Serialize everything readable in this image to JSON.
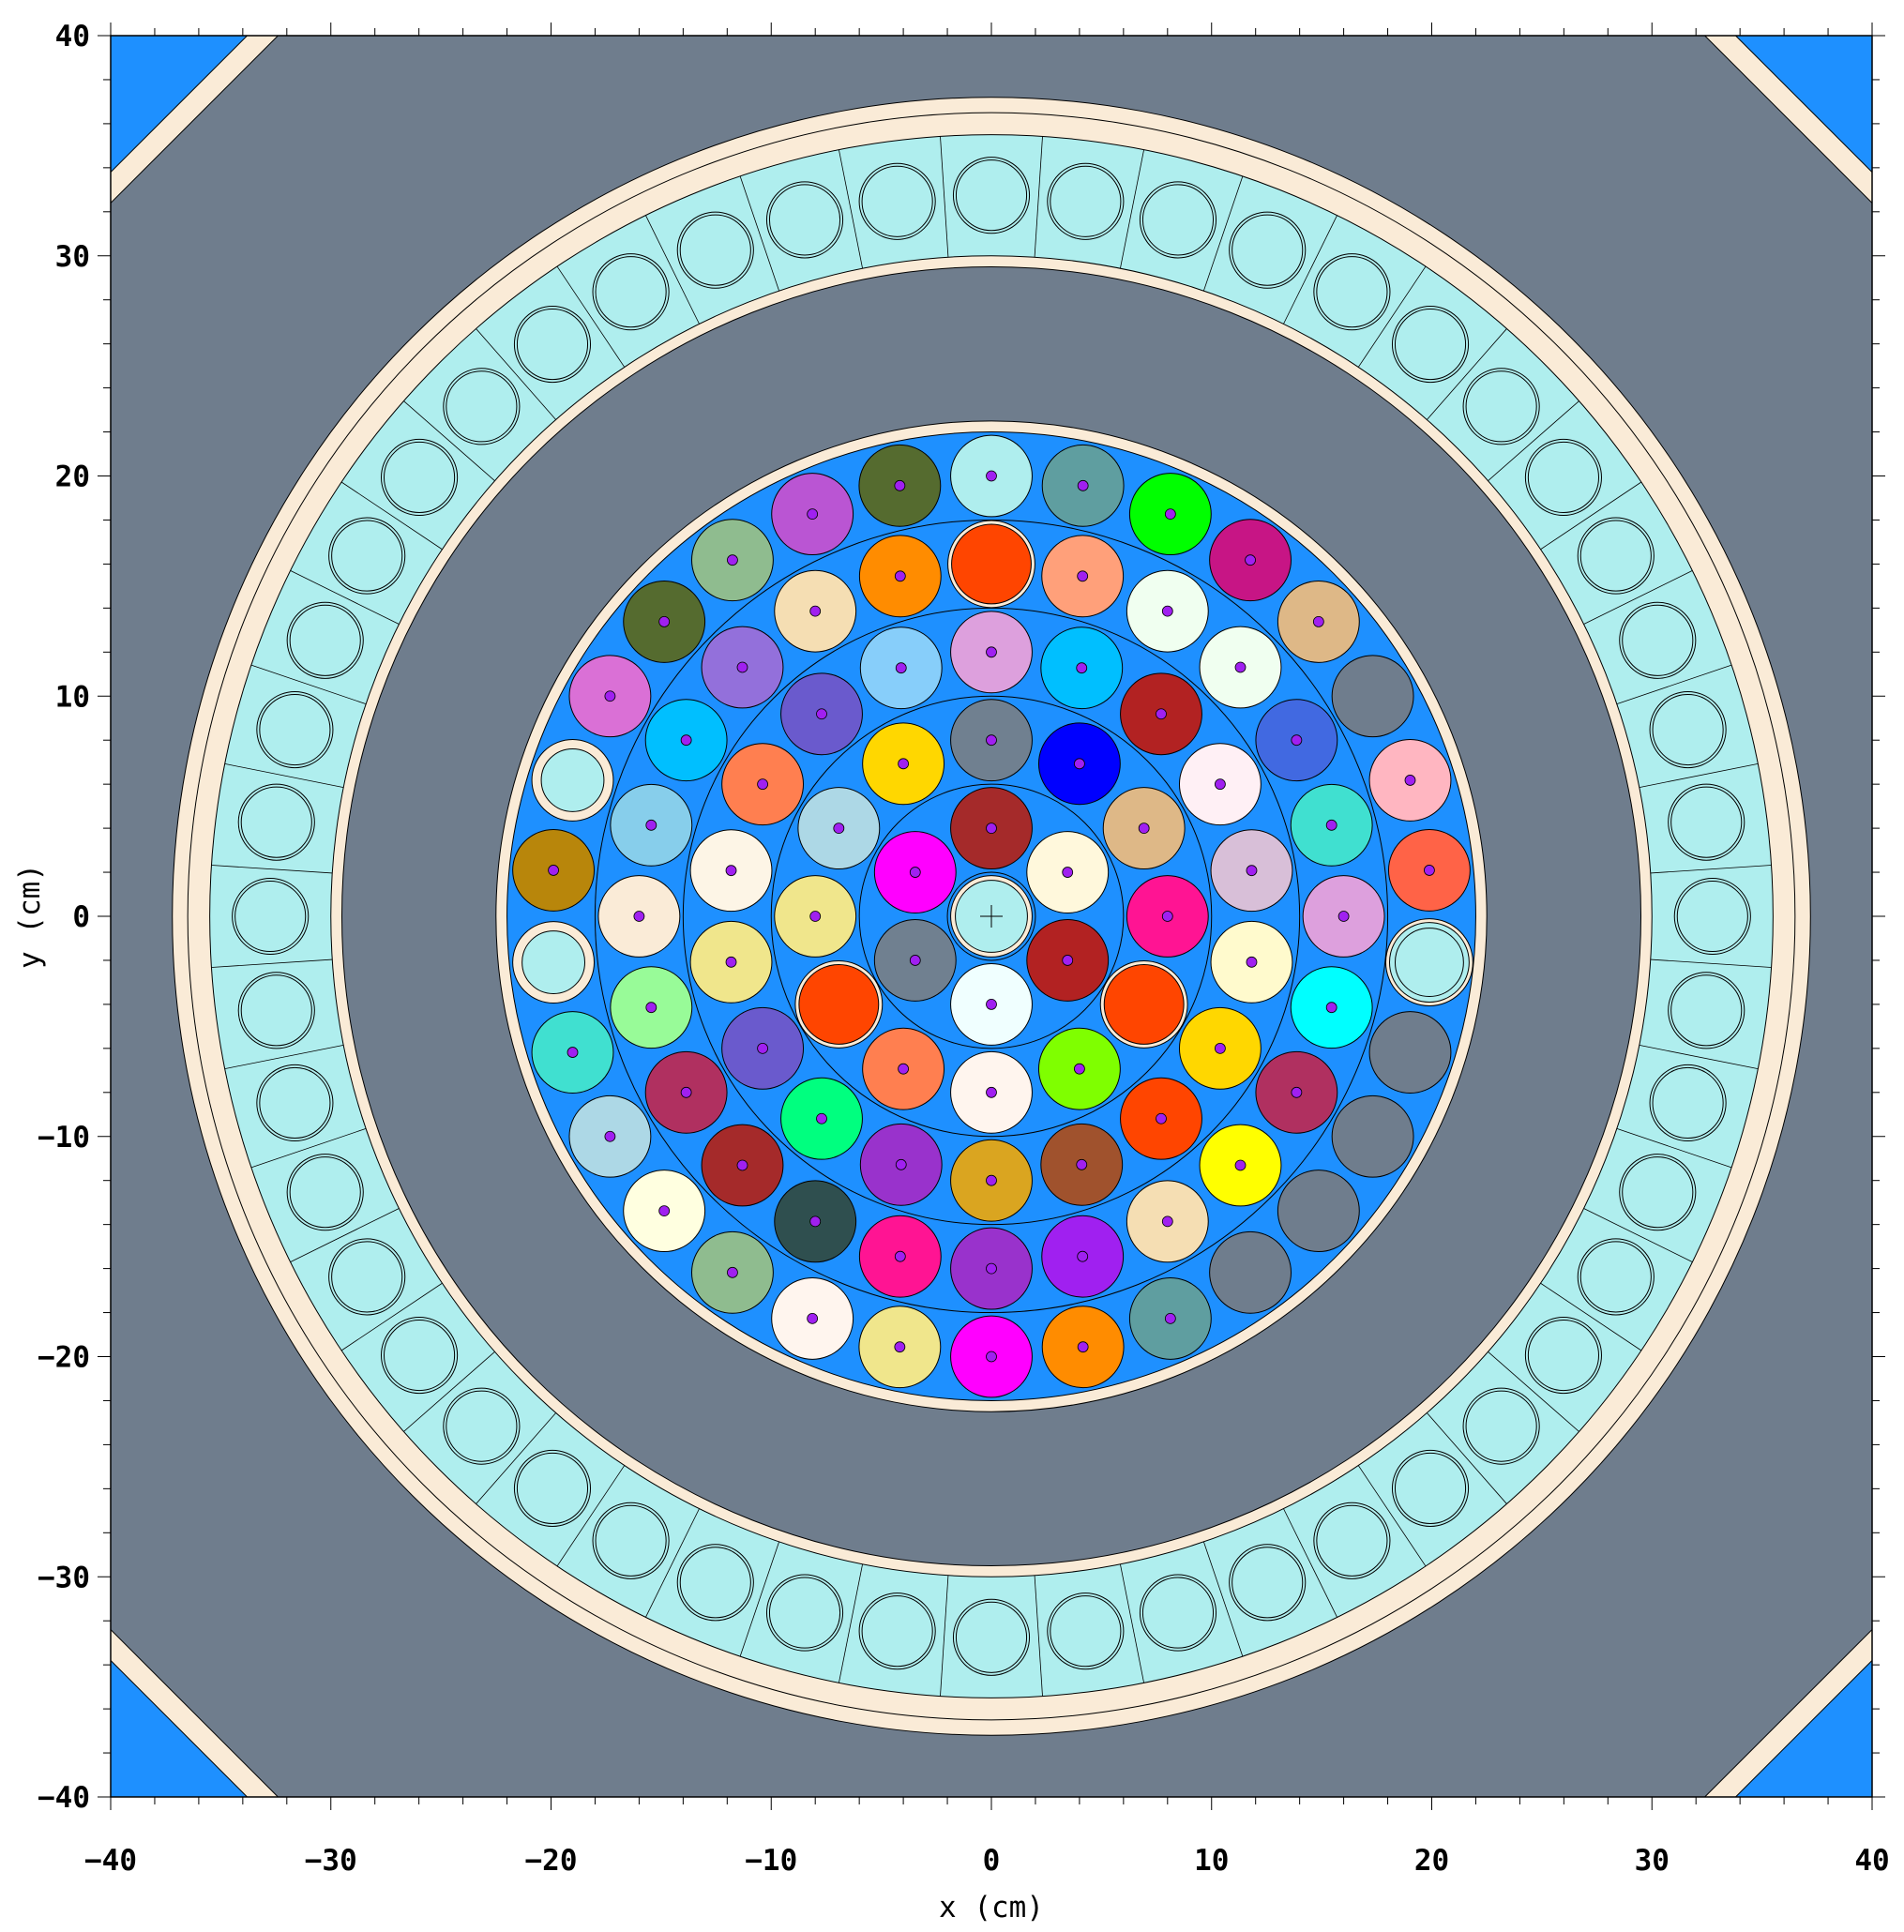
{
  "figure": {
    "x_label": "x (cm)",
    "y_label": "y (cm)",
    "x_range": [
      -40,
      40
    ],
    "y_range": [
      -40,
      40
    ],
    "x_major_ticks": [
      -40,
      -30,
      -20,
      -10,
      0,
      10,
      20,
      30,
      40
    ],
    "y_major_ticks": [
      -40,
      -30,
      -20,
      -10,
      0,
      10,
      20,
      30,
      40
    ],
    "x_tick_labels": [
      "−40",
      "−30",
      "−20",
      "−10",
      "0",
      "10",
      "20",
      "30",
      "40"
    ],
    "y_tick_labels": [
      "−40",
      "−30",
      "−20",
      "−10",
      "0",
      "10",
      "20",
      "30",
      "40"
    ],
    "minor_tick_step": 2
  },
  "colors": {
    "background_gray": "#6f7d8d",
    "corner_water": "#1e90ff",
    "shell_beige": "#faebd7",
    "reflector_cyan": "#afeeee",
    "core_water": "#1e90ff",
    "empty_channel": "#6f7d8d",
    "pin_marker": "#a020f0"
  },
  "geometry_cm": {
    "vessel_outer_radius": 37.2,
    "vessel_inner_radius": 36.5,
    "reflector_outer_radius": 35.5,
    "reflector_inner_radius": 29.5,
    "reflector_inner_shell_radius": 30.0,
    "core_outer_radius": 22.5,
    "core_inner_radius": 22.0,
    "rod_radius": 1.85,
    "reflector_block_count": 48,
    "reflector_hole_radius": 1.6,
    "ring_radii": [
      2.0,
      6.0,
      10.0,
      14.0,
      18.0
    ]
  },
  "channels": [
    {
      "x": 0.0,
      "y": 0.0,
      "type": "central",
      "color": "#afeeee"
    },
    {
      "x": 0.0,
      "y": 4.0,
      "type": "fuel",
      "color": "#a52a2a"
    },
    {
      "x": 3.46,
      "y": 2.0,
      "type": "fuel",
      "color": "#fff8dc"
    },
    {
      "x": 3.46,
      "y": -2.0,
      "type": "fuel",
      "color": "#b22222"
    },
    {
      "x": 0.0,
      "y": -4.0,
      "type": "fuel",
      "color": "#f0ffff"
    },
    {
      "x": -3.46,
      "y": -2.0,
      "type": "fuel",
      "color": "#708090"
    },
    {
      "x": -3.46,
      "y": 2.0,
      "type": "fuel",
      "color": "#ff00ff"
    },
    {
      "x": 0.0,
      "y": 8.0,
      "type": "fuel",
      "color": "#708090"
    },
    {
      "x": 4.0,
      "y": 6.93,
      "type": "fuel",
      "color": "#0000ff"
    },
    {
      "x": 6.93,
      "y": 4.0,
      "type": "fuel",
      "color": "#deb887"
    },
    {
      "x": 8.0,
      "y": 0.0,
      "type": "fuel",
      "color": "#ff1493"
    },
    {
      "x": 6.93,
      "y": -4.0,
      "type": "control",
      "color": "#ff4500"
    },
    {
      "x": 4.0,
      "y": -6.93,
      "type": "fuel",
      "color": "#7fff00"
    },
    {
      "x": 0.0,
      "y": -8.0,
      "type": "fuel",
      "color": "#fff5ee"
    },
    {
      "x": -4.0,
      "y": -6.93,
      "type": "fuel",
      "color": "#ff7f50"
    },
    {
      "x": -6.93,
      "y": -4.0,
      "type": "control",
      "color": "#ff4500"
    },
    {
      "x": -8.0,
      "y": 0.0,
      "type": "fuel",
      "color": "#f0e68c"
    },
    {
      "x": -6.93,
      "y": 4.0,
      "type": "fuel",
      "color": "#add8e6"
    },
    {
      "x": -4.0,
      "y": 6.93,
      "type": "fuel",
      "color": "#ffd700"
    },
    {
      "x": 0.0,
      "y": 12.0,
      "type": "fuel",
      "color": "#dda0dd"
    },
    {
      "x": 4.1,
      "y": 11.28,
      "type": "fuel",
      "color": "#00bfff"
    },
    {
      "x": 7.71,
      "y": 9.19,
      "type": "fuel",
      "color": "#b22222"
    },
    {
      "x": 10.39,
      "y": 6.0,
      "type": "fuel",
      "color": "#fff0f5"
    },
    {
      "x": 11.82,
      "y": 2.08,
      "type": "fuel",
      "color": "#d8bfd8"
    },
    {
      "x": 11.82,
      "y": -2.08,
      "type": "fuel",
      "color": "#fffacd"
    },
    {
      "x": 10.39,
      "y": -6.0,
      "type": "fuel",
      "color": "#ffd700"
    },
    {
      "x": 7.71,
      "y": -9.19,
      "type": "fuel",
      "color": "#ff4500"
    },
    {
      "x": 4.1,
      "y": -11.28,
      "type": "fuel",
      "color": "#a0522d"
    },
    {
      "x": 0.0,
      "y": -12.0,
      "type": "fuel",
      "color": "#daa520"
    },
    {
      "x": -4.1,
      "y": -11.28,
      "type": "fuel",
      "color": "#9932cc"
    },
    {
      "x": -7.71,
      "y": -9.19,
      "type": "fuel",
      "color": "#00ff7f"
    },
    {
      "x": -10.39,
      "y": -6.0,
      "type": "fuel",
      "color": "#6a5acd"
    },
    {
      "x": -11.82,
      "y": -2.08,
      "type": "fuel",
      "color": "#f0e68c"
    },
    {
      "x": -11.82,
      "y": 2.08,
      "type": "fuel",
      "color": "#fdf5e6"
    },
    {
      "x": -10.39,
      "y": 6.0,
      "type": "fuel",
      "color": "#ff7f50"
    },
    {
      "x": -7.71,
      "y": 9.19,
      "type": "fuel",
      "color": "#6a5acd"
    },
    {
      "x": -4.1,
      "y": 11.28,
      "type": "fuel",
      "color": "#87cefa"
    },
    {
      "x": 0.0,
      "y": 16.0,
      "type": "control",
      "color": "#ff4500"
    },
    {
      "x": 4.14,
      "y": 15.45,
      "type": "fuel",
      "color": "#ffa07a"
    },
    {
      "x": 8.0,
      "y": 13.86,
      "type": "fuel",
      "color": "#f0fff0"
    },
    {
      "x": 11.31,
      "y": 11.31,
      "type": "fuel",
      "color": "#f0fff0"
    },
    {
      "x": 13.86,
      "y": 8.0,
      "type": "fuel",
      "color": "#4169e1"
    },
    {
      "x": 15.45,
      "y": 4.14,
      "type": "fuel",
      "color": "#40e0d0"
    },
    {
      "x": 16.0,
      "y": 0.0,
      "type": "fuel",
      "color": "#dda0dd"
    },
    {
      "x": 15.45,
      "y": -4.14,
      "type": "fuel",
      "color": "#00ffff"
    },
    {
      "x": 13.86,
      "y": -8.0,
      "type": "fuel",
      "color": "#b03060"
    },
    {
      "x": 11.31,
      "y": -11.31,
      "type": "fuel",
      "color": "#ffff00"
    },
    {
      "x": 8.0,
      "y": -13.86,
      "type": "fuel",
      "color": "#f5deb3"
    },
    {
      "x": 4.14,
      "y": -15.45,
      "type": "fuel",
      "color": "#a020f0"
    },
    {
      "x": 0.0,
      "y": -16.0,
      "type": "fuel",
      "color": "#9932cc"
    },
    {
      "x": -4.14,
      "y": -15.45,
      "type": "fuel",
      "color": "#ff1493"
    },
    {
      "x": -8.0,
      "y": -13.86,
      "type": "fuel",
      "color": "#2f4f4f"
    },
    {
      "x": -11.31,
      "y": -11.31,
      "type": "fuel",
      "color": "#a52a2a"
    },
    {
      "x": -13.86,
      "y": -8.0,
      "type": "fuel",
      "color": "#b03060"
    },
    {
      "x": -15.45,
      "y": -4.14,
      "type": "fuel",
      "color": "#98fb98"
    },
    {
      "x": -16.0,
      "y": 0.0,
      "type": "fuel",
      "color": "#faebd7"
    },
    {
      "x": -15.45,
      "y": 4.14,
      "type": "fuel",
      "color": "#87ceeb"
    },
    {
      "x": -13.86,
      "y": 8.0,
      "type": "fuel",
      "color": "#00bfff"
    },
    {
      "x": -11.31,
      "y": 11.31,
      "type": "fuel",
      "color": "#9370db"
    },
    {
      "x": -8.0,
      "y": 13.86,
      "type": "fuel",
      "color": "#f5deb3"
    },
    {
      "x": -4.14,
      "y": 15.45,
      "type": "fuel",
      "color": "#ff8c00"
    },
    {
      "x": 0.0,
      "y": 20.0,
      "type": "fuel",
      "color": "#afeeee"
    },
    {
      "x": 4.16,
      "y": 19.56,
      "type": "fuel",
      "color": "#5f9ea0"
    },
    {
      "x": 8.13,
      "y": 18.27,
      "type": "fuel",
      "color": "#00ff00"
    },
    {
      "x": 11.76,
      "y": 16.18,
      "type": "fuel",
      "color": "#c71585"
    },
    {
      "x": 14.86,
      "y": 13.38,
      "type": "fuel",
      "color": "#deb887"
    },
    {
      "x": 17.32,
      "y": 10.0,
      "type": "empty",
      "color": "#6f7d8d"
    },
    {
      "x": 19.02,
      "y": 6.18,
      "type": "fuel",
      "color": "#ffb6c1"
    },
    {
      "x": 19.89,
      "y": 2.09,
      "type": "fuel",
      "color": "#ff6347"
    },
    {
      "x": 19.89,
      "y": -2.09,
      "type": "control",
      "color": "#afeeee"
    },
    {
      "x": 19.02,
      "y": -6.18,
      "type": "empty",
      "color": "#6f7d8d"
    },
    {
      "x": 17.32,
      "y": -10.0,
      "type": "empty",
      "color": "#6f7d8d"
    },
    {
      "x": 14.86,
      "y": -13.38,
      "type": "empty",
      "color": "#6f7d8d"
    },
    {
      "x": 11.76,
      "y": -16.18,
      "type": "empty",
      "color": "#6f7d8d"
    },
    {
      "x": 8.13,
      "y": -18.27,
      "type": "fuel",
      "color": "#5f9ea0"
    },
    {
      "x": 4.16,
      "y": -19.56,
      "type": "fuel",
      "color": "#ff8c00"
    },
    {
      "x": 0.0,
      "y": -20.0,
      "type": "fuel",
      "color": "#ff00ff"
    },
    {
      "x": -4.16,
      "y": -19.56,
      "type": "fuel",
      "color": "#f0e68c"
    },
    {
      "x": -8.13,
      "y": -18.27,
      "type": "fuel",
      "color": "#fff5ee"
    },
    {
      "x": -11.76,
      "y": -16.18,
      "type": "fuel",
      "color": "#8fbc8f"
    },
    {
      "x": -14.86,
      "y": -13.38,
      "type": "fuel",
      "color": "#ffffe0"
    },
    {
      "x": -17.32,
      "y": -10.0,
      "type": "fuel",
      "color": "#add8e6"
    },
    {
      "x": -19.02,
      "y": -6.18,
      "type": "fuel",
      "color": "#40e0d0"
    },
    {
      "x": -19.89,
      "y": -2.09,
      "type": "tube",
      "color": "#afeeee"
    },
    {
      "x": -19.89,
      "y": 2.09,
      "type": "fuel",
      "color": "#b8860b"
    },
    {
      "x": -19.02,
      "y": 6.18,
      "type": "tube",
      "color": "#afeeee"
    },
    {
      "x": -17.32,
      "y": 10.0,
      "type": "fuel",
      "color": "#da70d6"
    },
    {
      "x": -14.86,
      "y": 13.38,
      "type": "fuel",
      "color": "#556b2f"
    },
    {
      "x": -11.76,
      "y": 16.18,
      "type": "fuel",
      "color": "#8fbc8f"
    },
    {
      "x": -8.13,
      "y": 18.27,
      "type": "fuel",
      "color": "#ba55d3"
    },
    {
      "x": -4.16,
      "y": 19.56,
      "type": "fuel",
      "color": "#556b2f"
    }
  ]
}
